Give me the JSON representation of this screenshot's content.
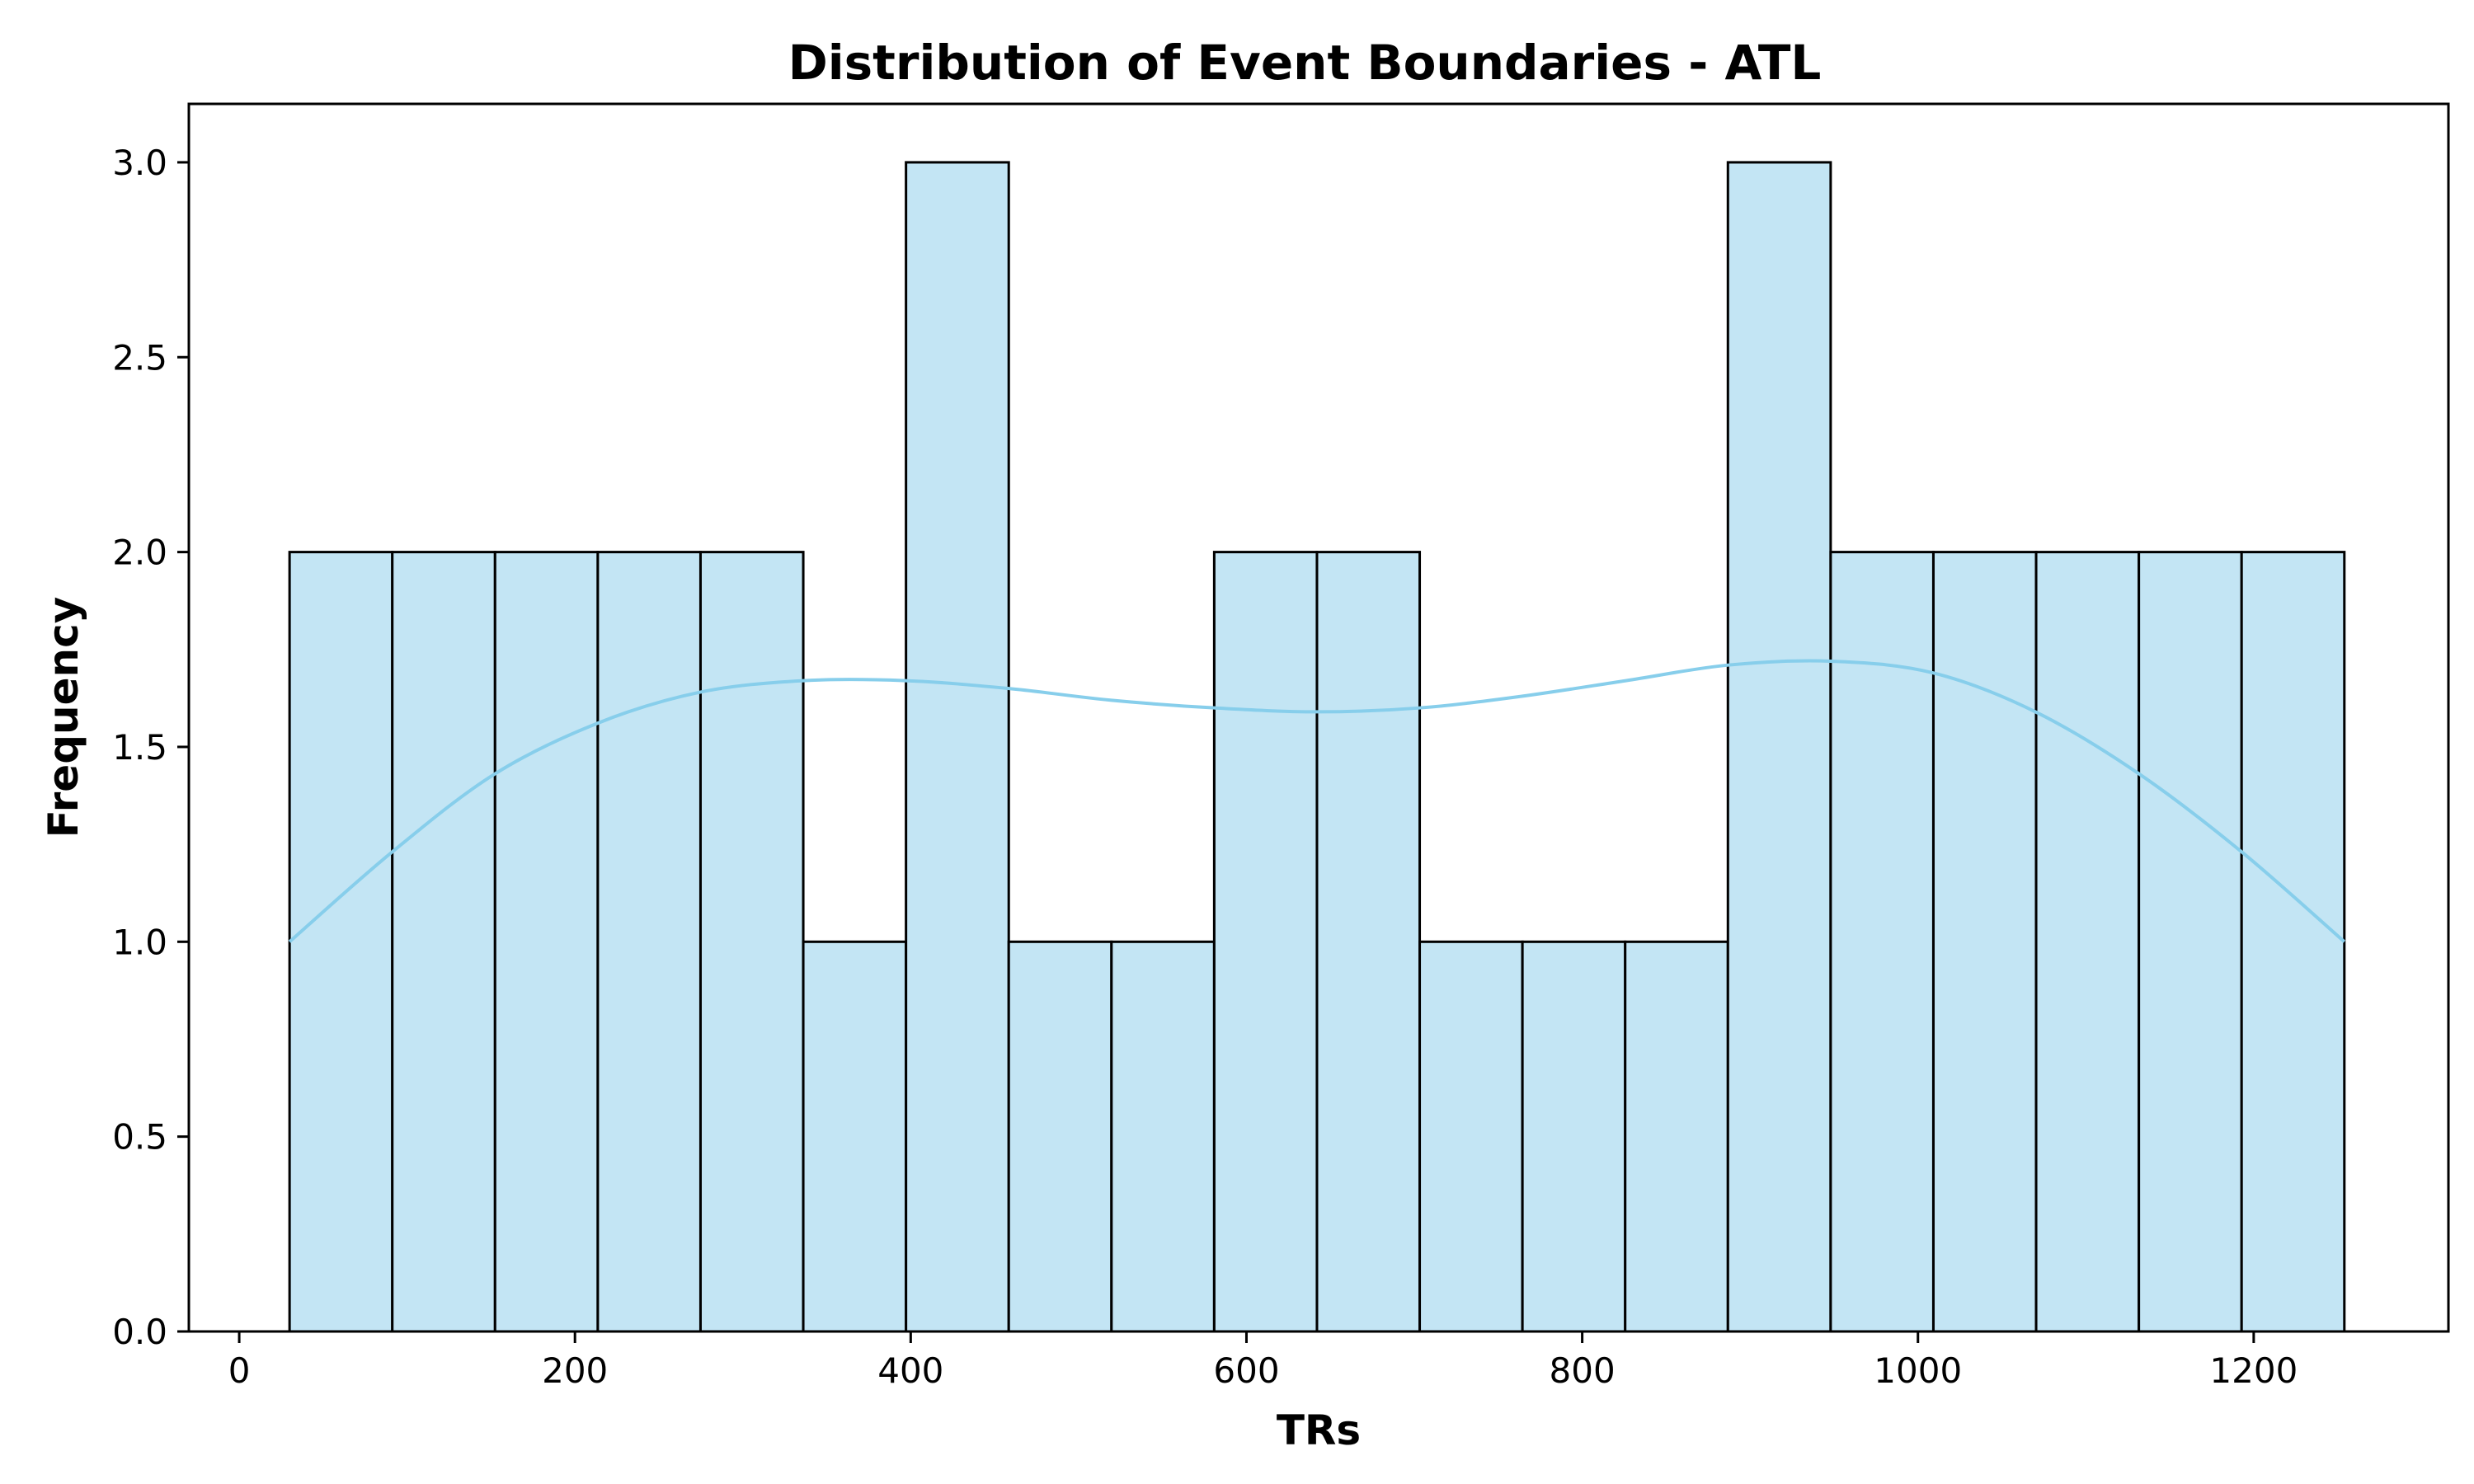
{
  "chart_data": {
    "type": "bar",
    "title": "Distribution of Event Boundaries - ATL",
    "xlabel": "TRs",
    "ylabel": "Frequency",
    "xlim": [
      -30,
      1316
    ],
    "ylim": [
      0,
      3.15
    ],
    "xticks": [
      0,
      200,
      400,
      600,
      800,
      1000,
      1200
    ],
    "yticks": [
      0.0,
      0.5,
      1.0,
      1.5,
      2.0,
      2.5,
      3.0
    ],
    "xtick_labels": [
      "0",
      "200",
      "400",
      "600",
      "800",
      "1000",
      "1200"
    ],
    "ytick_labels": [
      "0.0",
      "0.5",
      "1.0",
      "1.5",
      "2.0",
      "2.5",
      "3.0"
    ],
    "bins": [
      {
        "x0": 30,
        "x1": 91.2,
        "count": 2
      },
      {
        "x0": 91.2,
        "x1": 152.4,
        "count": 2
      },
      {
        "x0": 152.4,
        "x1": 213.6,
        "count": 2
      },
      {
        "x0": 213.6,
        "x1": 274.8,
        "count": 2
      },
      {
        "x0": 274.8,
        "x1": 336,
        "count": 2
      },
      {
        "x0": 336,
        "x1": 397.2,
        "count": 1
      },
      {
        "x0": 397.2,
        "x1": 458.4,
        "count": 3
      },
      {
        "x0": 458.4,
        "x1": 519.6,
        "count": 1
      },
      {
        "x0": 519.6,
        "x1": 580.8,
        "count": 1
      },
      {
        "x0": 580.8,
        "x1": 642,
        "count": 2
      },
      {
        "x0": 642,
        "x1": 703.2,
        "count": 2
      },
      {
        "x0": 703.2,
        "x1": 764.4,
        "count": 1
      },
      {
        "x0": 764.4,
        "x1": 825.6,
        "count": 1
      },
      {
        "x0": 825.6,
        "x1": 886.8,
        "count": 1
      },
      {
        "x0": 886.8,
        "x1": 948,
        "count": 3
      },
      {
        "x0": 948,
        "x1": 1009.2,
        "count": 2
      },
      {
        "x0": 1009.2,
        "x1": 1070.4,
        "count": 2
      },
      {
        "x0": 1070.4,
        "x1": 1131.6,
        "count": 2
      },
      {
        "x0": 1131.6,
        "x1": 1192.8,
        "count": 2
      },
      {
        "x0": 1192.8,
        "x1": 1254,
        "count": 2
      }
    ],
    "kde": {
      "x": [
        30,
        91,
        152,
        213,
        274,
        336,
        397,
        458,
        519,
        581,
        642,
        703,
        764,
        826,
        887,
        948,
        1009,
        1070,
        1132,
        1193,
        1254
      ],
      "y": [
        1.0,
        1.23,
        1.43,
        1.56,
        1.64,
        1.67,
        1.67,
        1.65,
        1.62,
        1.6,
        1.59,
        1.6,
        1.63,
        1.67,
        1.71,
        1.72,
        1.69,
        1.59,
        1.43,
        1.23,
        1.0
      ]
    },
    "grid": false,
    "legend": "none",
    "colors": {
      "bar_fill": "#c3e5f4",
      "bar_edge": "#000000",
      "kde_line": "#87ceeb"
    }
  }
}
